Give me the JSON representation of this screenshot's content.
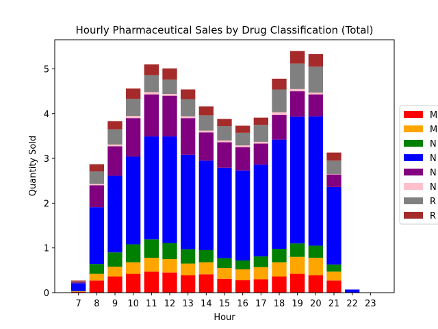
{
  "chart_data": {
    "type": "bar",
    "stacked": true,
    "title": "Hourly Pharmaceutical Sales by Drug Classification (Total)",
    "xlabel": "Hour",
    "ylabel": "Quantity Sold",
    "categories": [
      "7",
      "8",
      "9",
      "10",
      "11",
      "12",
      "13",
      "14",
      "15",
      "16",
      "17",
      "18",
      "19",
      "20",
      "21",
      "22",
      "23"
    ],
    "ylim": [
      0,
      5.65
    ],
    "yticks": [
      "0",
      "1",
      "2",
      "3",
      "4",
      "5"
    ],
    "grid": false,
    "legend_placement": "right (clipped)",
    "series": [
      {
        "name": "M",
        "color": "#ff0000",
        "values": [
          0.02,
          0.27,
          0.36,
          0.42,
          0.47,
          0.45,
          0.39,
          0.41,
          0.31,
          0.28,
          0.3,
          0.36,
          0.42,
          0.39,
          0.27,
          0,
          0
        ]
      },
      {
        "name": "M",
        "color": "#ffa500",
        "values": [
          0.01,
          0.15,
          0.22,
          0.26,
          0.31,
          0.3,
          0.26,
          0.27,
          0.24,
          0.24,
          0.27,
          0.32,
          0.38,
          0.39,
          0.2,
          0,
          0
        ]
      },
      {
        "name": "N",
        "color": "#008000",
        "values": [
          0.01,
          0.22,
          0.32,
          0.4,
          0.41,
          0.36,
          0.32,
          0.27,
          0.22,
          0.2,
          0.24,
          0.3,
          0.3,
          0.27,
          0.16,
          0,
          0
        ]
      },
      {
        "name": "N",
        "color": "#0000ff",
        "values": [
          0.17,
          1.27,
          1.71,
          1.96,
          2.3,
          2.38,
          2.11,
          2.0,
          2.02,
          2.01,
          2.05,
          2.44,
          2.83,
          2.89,
          1.73,
          0.07,
          0
        ]
      },
      {
        "name": "N",
        "color": "#800080",
        "values": [
          0.02,
          0.49,
          0.66,
          0.86,
          0.94,
          0.91,
          0.82,
          0.63,
          0.57,
          0.52,
          0.47,
          0.55,
          0.57,
          0.49,
          0.28,
          0,
          0
        ]
      },
      {
        "name": "N",
        "color": "#ffc0cb",
        "values": [
          0,
          0.03,
          0.04,
          0.05,
          0.05,
          0.04,
          0.04,
          0.04,
          0.04,
          0.04,
          0.04,
          0.06,
          0.05,
          0.04,
          0.01,
          0,
          0
        ]
      },
      {
        "name": "R",
        "color": "#808080",
        "values": [
          0.02,
          0.28,
          0.34,
          0.38,
          0.38,
          0.32,
          0.38,
          0.34,
          0.32,
          0.28,
          0.38,
          0.51,
          0.57,
          0.58,
          0.3,
          0,
          0
        ]
      },
      {
        "name": "R",
        "color": "#a52a2a",
        "values": [
          0.02,
          0.16,
          0.18,
          0.23,
          0.24,
          0.25,
          0.22,
          0.2,
          0.16,
          0.16,
          0.16,
          0.24,
          0.28,
          0.28,
          0.18,
          0,
          0
        ]
      }
    ]
  }
}
